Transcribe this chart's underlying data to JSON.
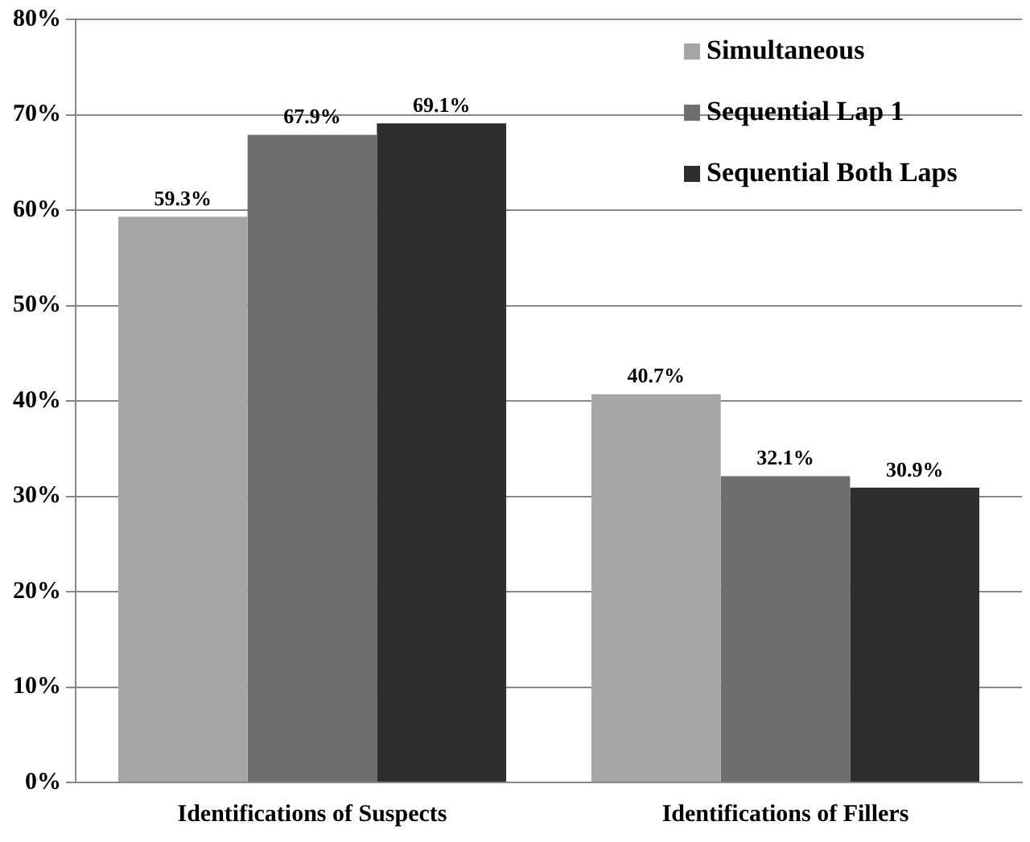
{
  "chart_data": {
    "type": "bar",
    "categories": [
      "Identifications of Suspects",
      "Identifications of Fillers"
    ],
    "series": [
      {
        "name": "Simultaneous",
        "color": "#a6a6a6",
        "values": [
          59.3,
          40.7
        ],
        "value_labels": [
          "59.3%",
          "40.7%"
        ]
      },
      {
        "name": "Sequential Lap 1",
        "color": "#6e6e6e",
        "values": [
          67.9,
          32.1
        ],
        "value_labels": [
          "67.9%",
          "32.1%"
        ]
      },
      {
        "name": "Sequential Both Laps",
        "color": "#2e2e2e",
        "values": [
          69.1,
          30.9
        ],
        "value_labels": [
          "69.1%",
          "30.9%"
        ]
      }
    ],
    "ylim": [
      0,
      80
    ],
    "yticks": [
      {
        "value": 0,
        "label": "0%"
      },
      {
        "value": 10,
        "label": "10%"
      },
      {
        "value": 20,
        "label": "20%"
      },
      {
        "value": 30,
        "label": "30%"
      },
      {
        "value": 40,
        "label": "40%"
      },
      {
        "value": 50,
        "label": "50%"
      },
      {
        "value": 60,
        "label": "60%"
      },
      {
        "value": 70,
        "label": "70%"
      },
      {
        "value": 80,
        "label": "80%"
      }
    ],
    "grid": "y",
    "legend": "top right"
  }
}
